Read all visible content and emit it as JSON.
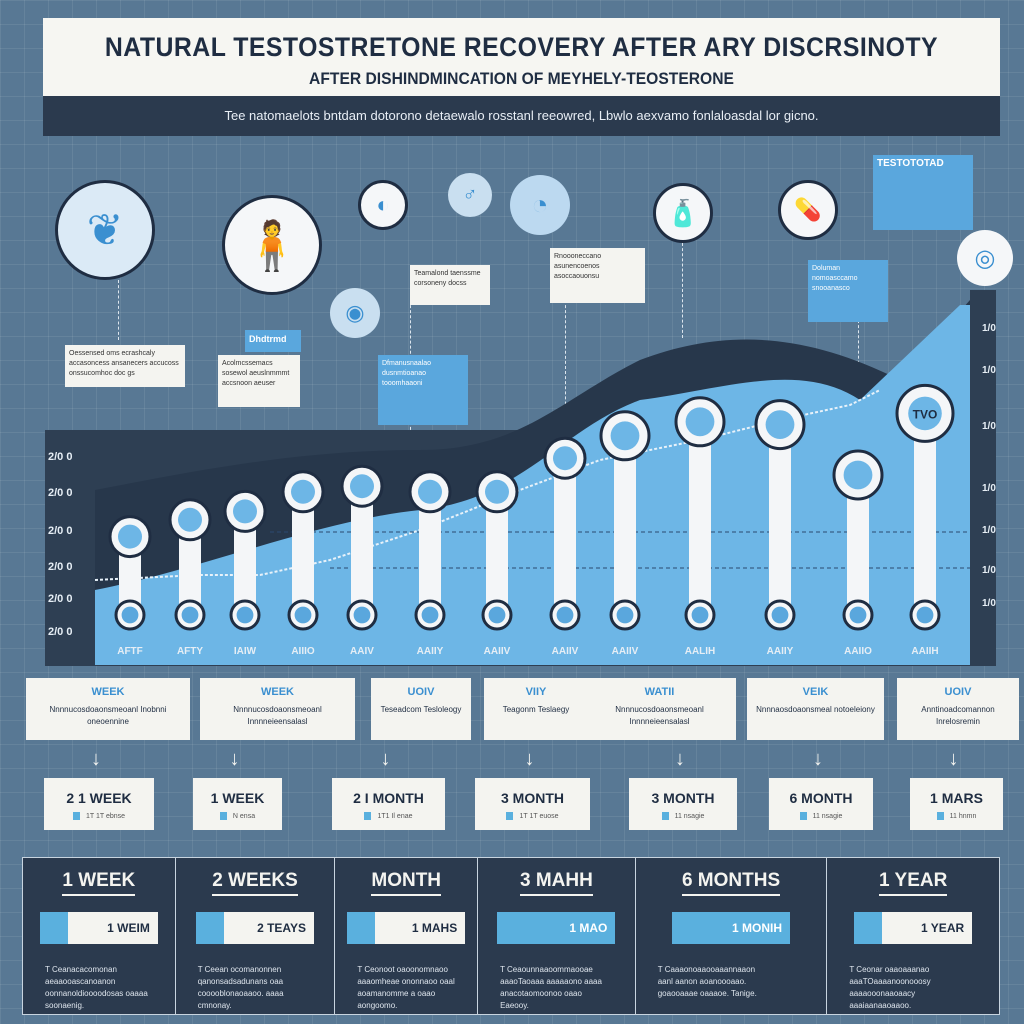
{
  "header": {
    "title": "NATURAL  TESTOSTRETONE RECOVERY AFTER ARY DISCRSINOTY",
    "subtitle": "AFTER DISHINDMINCATION OF MEYHELY-TEOSTERONE",
    "description": "Tee natomaelots bntdam dotorono detaewalo rosstanl reeowred, Lbwlo aexvamo fonlaloasdal lor gicno."
  },
  "callouts": [
    {
      "text": "Oessensed oms ecrashcaly accasoncess ansanecers accucoss onssucomhoc doc gs"
    },
    {
      "text": "Dhdtrmd"
    },
    {
      "text": "Acolmcssemacs sosewol aeuslnmmmt accsnoon aeuser"
    },
    {
      "text": "Teamalond taenssme corsoneny docss"
    },
    {
      "text": "Dfmanusnaalao dusnmtioanao tooomhaaoni"
    },
    {
      "text": "Rnoooneccano asunencoenos asoccaouonsu"
    },
    {
      "text": "TESTOTOTAD"
    },
    {
      "text": "Doluman nomoasccamo snooanasco"
    }
  ],
  "bar_badge": "TVO",
  "y_axis_left": [
    "2/0 0",
    "2/0 0",
    "2/0 0",
    "2/0 0",
    "2/0 0",
    "2/0 0"
  ],
  "y_axis_right": [
    "1/0",
    "1/0",
    "1/0",
    "1/0",
    "1/0",
    "1/0",
    "1/0"
  ],
  "x_labels": [
    "AFTF",
    "AFTY",
    "IAIW",
    "AIIIO",
    "AAIV",
    "AAIIY",
    "AAIIV",
    "AAIIV",
    "AAIIV",
    "AALIH",
    "AAIIY",
    "AAIIO",
    "AAIIH"
  ],
  "bar_levels": [
    0.28,
    0.34,
    0.37,
    0.44,
    0.46,
    0.44,
    0.44,
    0.56,
    0.64,
    0.69,
    0.68,
    0.5,
    0.72
  ],
  "timeline_cards": [
    {
      "head": "WEEK",
      "body": "Nnnnucosdoaonsmeoanl Inobnni oneoennine"
    },
    {
      "head": "WEEK",
      "body": "Nnnnucosdoaonsmeoanl Innnneieensalasl"
    },
    {
      "head": "UOIV",
      "body": "Teseadcom Tesloleogy"
    },
    {
      "head": "VIIY",
      "body": "Teagonm Teslaegy"
    },
    {
      "head": "WATII",
      "body": "Nnnnucosdoaonsmeoanl Innnneieensalasl"
    },
    {
      "head": "VEIK",
      "body": "Nnnnaosdoaonsmeal notoeleiony"
    },
    {
      "head": "UOIV",
      "body": "Anntinoadcomannon Inrelosremin"
    }
  ],
  "timeline_steps": [
    {
      "label": "2  1 WEEK",
      "sub": "1T 1T ebnse"
    },
    {
      "label": "1  WEEK",
      "sub": "N ensa"
    },
    {
      "label": "2  I MONTH",
      "sub": "1T1 Il enae"
    },
    {
      "label": "3  MONTH",
      "sub": "1T 1T euose"
    },
    {
      "label": "3 MONTH",
      "sub": "11 nsagie"
    },
    {
      "label": "6  MONTH",
      "sub": "11 nsagie"
    },
    {
      "label": "1 MARS",
      "sub": "11 hnmn"
    }
  ],
  "summary": [
    {
      "title": "1 WEEK",
      "value": "1 WEIM",
      "fill": "partial",
      "text": "T Ceanacacomonan aeaaooascanoanon oonnanoldioooodosas oaaaa soonaenig."
    },
    {
      "title": "2 WEEKS",
      "value": "2 TEAYS",
      "fill": "partial",
      "text": "T Ceean ocomanonnen qanonsadsadunans oaa cooooblonaoaaoo. aaaa cmnonay."
    },
    {
      "title": "MONTH",
      "value": "1 MAHS",
      "fill": "partial",
      "text": "T Ceonoot oaoonomnaoo aaaomheae ononnaoo oaal aoamanomme a oaao aongoomo."
    },
    {
      "title": "3 MAHH",
      "value": "1 MAO",
      "fill": "full",
      "text": "T Ceaounnaaoommaooae aaaoTaoaaa aaaaaono aaaa anacotaomoonoo oaao Eaeooy."
    },
    {
      "title": "6  MONTHS",
      "value": "1 MONIH",
      "fill": "full",
      "text": "T Caaaonoaaooaaannaaon aanl aanon aoanoooaao. goaooaaae oaaaoe. Tanige."
    },
    {
      "title": "1  YEAR",
      "value": "1 YEAR",
      "fill": "partial",
      "text": "T Ceonar oaaoaaanao aaaTOaaaanoonooosy aaaaooonaaoaacy aaaiaanaaoaaoo."
    }
  ],
  "colors": {
    "background": "#587894",
    "dark": "#2b3a4e",
    "accent": "#5ab0de",
    "panel": "#f4f4f0"
  }
}
